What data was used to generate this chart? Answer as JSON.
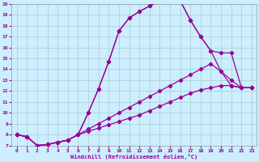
{
  "xlabel": "Windchill (Refroidissement éolien,°C)",
  "xlim": [
    -0.5,
    23.5
  ],
  "ylim": [
    7,
    20
  ],
  "xticks": [
    0,
    1,
    2,
    3,
    4,
    5,
    6,
    7,
    8,
    9,
    10,
    11,
    12,
    13,
    14,
    15,
    16,
    17,
    18,
    19,
    20,
    21,
    22,
    23
  ],
  "yticks": [
    7,
    8,
    9,
    10,
    11,
    12,
    13,
    14,
    15,
    16,
    17,
    18,
    19,
    20
  ],
  "bg_color": "#cceeff",
  "grid_color": "#aacccc",
  "line_color": "#990099",
  "lines": [
    {
      "x": [
        0,
        1,
        2,
        3,
        4,
        5,
        6,
        7,
        8,
        9,
        10,
        11,
        12,
        13,
        14,
        15,
        16,
        17,
        18,
        19,
        20,
        21,
        22,
        23
      ],
      "y": [
        8.0,
        7.8,
        7.0,
        7.1,
        7.3,
        7.5,
        8.0,
        10.0,
        12.2,
        14.7,
        17.5,
        18.7,
        19.3,
        19.8,
        20.3,
        20.3,
        20.3,
        18.5,
        17.0,
        15.7,
        15.5,
        15.5,
        12.3,
        12.3
      ]
    },
    {
      "x": [
        0,
        1,
        2,
        3,
        4,
        5,
        6,
        7,
        8,
        9,
        10,
        11,
        12,
        13,
        14,
        15,
        16,
        17,
        18,
        19,
        20,
        21,
        22,
        23
      ],
      "y": [
        8.0,
        7.8,
        7.0,
        7.1,
        7.3,
        7.5,
        8.0,
        10.0,
        12.2,
        14.7,
        17.5,
        18.7,
        19.3,
        19.8,
        20.3,
        20.3,
        20.3,
        18.5,
        17.0,
        15.7,
        13.8,
        12.5,
        12.3,
        12.3
      ]
    },
    {
      "x": [
        0,
        1,
        2,
        3,
        4,
        5,
        6,
        7,
        8,
        9,
        10,
        11,
        12,
        13,
        14,
        15,
        16,
        17,
        18,
        19,
        20,
        21,
        22,
        23
      ],
      "y": [
        8.0,
        7.8,
        7.0,
        7.1,
        7.3,
        7.5,
        8.0,
        8.5,
        9.0,
        9.5,
        10.0,
        10.5,
        11.0,
        11.5,
        12.0,
        12.5,
        13.0,
        13.5,
        14.0,
        14.5,
        13.8,
        13.0,
        12.3,
        12.3
      ]
    },
    {
      "x": [
        0,
        1,
        2,
        3,
        4,
        5,
        6,
        7,
        8,
        9,
        10,
        11,
        12,
        13,
        14,
        15,
        16,
        17,
        18,
        19,
        20,
        21,
        22,
        23
      ],
      "y": [
        8.0,
        7.8,
        7.0,
        7.1,
        7.3,
        7.5,
        8.0,
        8.3,
        8.6,
        8.9,
        9.2,
        9.5,
        9.8,
        10.2,
        10.6,
        11.0,
        11.4,
        11.8,
        12.1,
        12.3,
        12.5,
        12.5,
        12.3,
        12.3
      ]
    }
  ]
}
